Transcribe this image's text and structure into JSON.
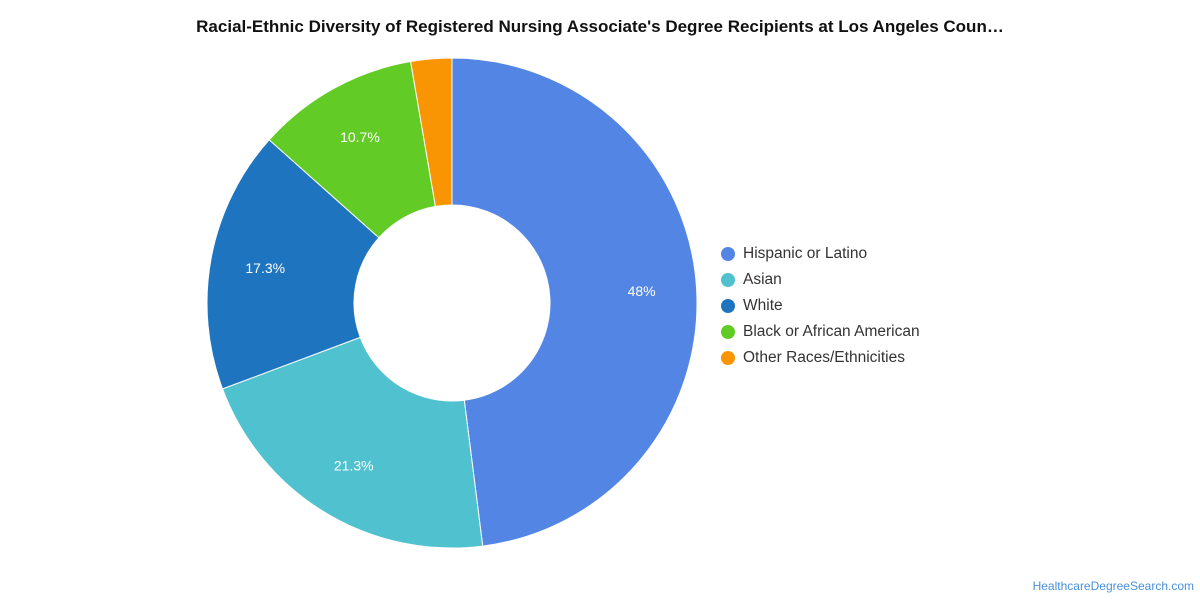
{
  "chart_data": {
    "type": "pie",
    "title": "Racial-Ethnic Diversity of Registered Nursing Associate's Degree Recipients at Los Angeles Coun…",
    "categories": [
      "Hispanic or Latino",
      "Asian",
      "White",
      "Black or African American",
      "Other Races/Ethnicities"
    ],
    "values": [
      48,
      21.3,
      17.3,
      10.7,
      2.7
    ],
    "data_labels": [
      "48%",
      "21.3%",
      "17.3%",
      "10.7%",
      ""
    ],
    "colors": [
      "#5386e4",
      "#4fc1cf",
      "#1f74bf",
      "#63cb25",
      "#f99503"
    ],
    "donut": true,
    "legend_position": "right"
  },
  "footer": {
    "source_link": "HealthcareDegreeSearch.com"
  }
}
